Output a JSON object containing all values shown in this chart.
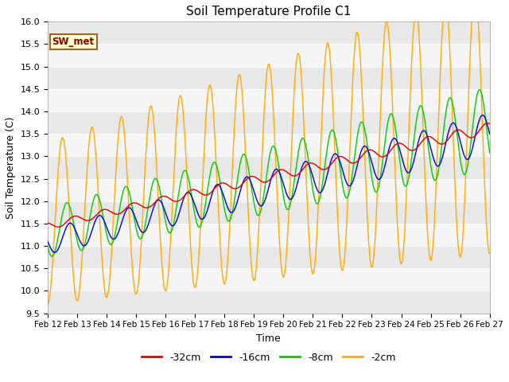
{
  "title": "Soil Temperature Profile C1",
  "xlabel": "Time",
  "ylabel": "Soil Temperature (C)",
  "ylim": [
    9.5,
    16.0
  ],
  "annotation_text": "SW_met",
  "annotation_bg": "#ffffcc",
  "annotation_border": "#996633",
  "annotation_text_color": "#880000",
  "x_tick_labels": [
    "Feb 12",
    "Feb 13",
    "Feb 14",
    "Feb 15",
    "Feb 16",
    "Feb 17",
    "Feb 18",
    "Feb 19",
    "Feb 20",
    "Feb 21",
    "Feb 22",
    "Feb 23",
    "Feb 24",
    "Feb 25",
    "Feb 26",
    "Feb 27"
  ],
  "legend_entries": [
    "-32cm",
    "-16cm",
    "-8cm",
    "-2cm"
  ],
  "legend_colors": [
    "#dd0000",
    "#0000dd",
    "#00cc00",
    "#ffaa00"
  ],
  "line_colors": {
    "d32": "#dd0000",
    "d16": "#0000dd",
    "d8": "#00cc00",
    "d2": "#ffaa00"
  },
  "yticks": [
    9.5,
    10.0,
    10.5,
    11.0,
    11.5,
    12.0,
    12.5,
    13.0,
    13.5,
    14.0,
    14.5,
    15.0,
    15.5,
    16.0
  ],
  "figsize": [
    6.4,
    4.8
  ],
  "dpi": 100
}
